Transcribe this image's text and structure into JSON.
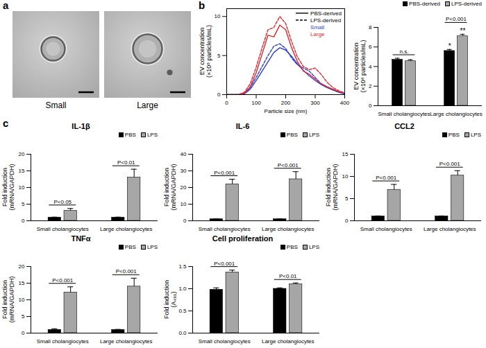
{
  "chart_data": [
    {
      "type": "image",
      "panel": "a",
      "labels": [
        "Small",
        "Large"
      ]
    },
    {
      "type": "line",
      "panel": "b",
      "x_label": "Particle size (nm)",
      "y_label": "EV concentration\n(×10⁸ particles/mL)",
      "x": [
        0,
        20,
        40,
        60,
        80,
        100,
        120,
        140,
        160,
        180,
        200,
        220,
        240,
        260,
        280,
        300,
        320,
        340,
        360,
        380,
        400
      ],
      "xlim": [
        0,
        400
      ],
      "xticks": [
        0,
        100,
        200,
        300,
        400
      ],
      "ylim": [
        0,
        11
      ],
      "yticks": [
        0,
        5,
        10
      ],
      "series": [
        {
          "name": "Small",
          "group": "PBS-derived",
          "color": "#2f3fd0",
          "line_style": "solid",
          "values": [
            0,
            0,
            0,
            0.1,
            0.7,
            1.8,
            3.0,
            4.2,
            5.4,
            6.0,
            5.7,
            4.9,
            3.9,
            3.1,
            2.4,
            1.8,
            1.3,
            0.9,
            0.6,
            0.3,
            0.1
          ]
        },
        {
          "name": "Small",
          "group": "LPS-derived",
          "color": "#2f3fd0",
          "line_style": "dashed",
          "values": [
            0,
            0,
            0,
            0.2,
            0.9,
            2.2,
            3.6,
            5.0,
            6.2,
            6.5,
            5.9,
            4.7,
            3.8,
            3.4,
            3.0,
            2.2,
            1.4,
            1.0,
            0.6,
            0.3,
            0.1
          ]
        },
        {
          "name": "Large",
          "group": "PBS-derived",
          "color": "#e3262b",
          "line_style": "solid",
          "values": [
            0,
            0,
            0,
            0.2,
            1.0,
            2.8,
            5.2,
            7.6,
            7.4,
            8.9,
            8.3,
            6.0,
            4.2,
            3.0,
            2.6,
            2.0,
            1.4,
            1.0,
            0.7,
            0.4,
            0.2
          ]
        },
        {
          "name": "Large",
          "group": "LPS-derived",
          "color": "#e3262b",
          "line_style": "dashed",
          "values": [
            0,
            0,
            0,
            0.3,
            1.4,
            3.5,
            6.0,
            8.3,
            8.6,
            10.0,
            9.1,
            6.8,
            4.8,
            3.6,
            3.2,
            3.4,
            2.6,
            1.6,
            0.9,
            0.5,
            0.2
          ]
        }
      ]
    },
    {
      "type": "bar",
      "y_label": "EV concentration\n(×10⁸ particles/mL)",
      "categories": [
        "Small cholangiocytes",
        "Large cholangiocytes"
      ],
      "ylim": [
        0,
        8
      ],
      "yticks": [
        0,
        2,
        4,
        6,
        8
      ],
      "series": [
        {
          "name": "PBS-derived",
          "color": "#000000",
          "values": [
            4.7,
            5.6
          ],
          "errors": [
            0.15,
            0.15
          ]
        },
        {
          "name": "LPS-derived",
          "color": "#a6a6a6",
          "values": [
            4.55,
            7.1
          ],
          "errors": [
            0.15,
            0.2
          ]
        }
      ],
      "annotations": [
        {
          "category": "Small cholangiocytes",
          "text": "n.s."
        },
        {
          "category": "Large cholangiocytes",
          "text": "P<0.001"
        },
        {
          "category": "Large cholangiocytes",
          "series": "PBS-derived",
          "text": "*"
        },
        {
          "category": "Large cholangiocytes",
          "series": "LPS-derived",
          "text": "**"
        }
      ]
    },
    {
      "type": "bar",
      "panel": "c",
      "title": "IL-1β",
      "y_label": "Fold induction\n(mRNA/GAPDH)",
      "categories": [
        "Small cholangiocytes",
        "Large cholangiocytes"
      ],
      "ylim": [
        0,
        20
      ],
      "yticks": [
        0,
        5,
        10,
        15,
        20
      ],
      "series": [
        {
          "name": "PBS",
          "color": "#000000",
          "values": [
            1.0,
            1.0
          ],
          "errors": [
            0.1,
            0.1
          ]
        },
        {
          "name": "LPS",
          "color": "#a6a6a6",
          "values": [
            3.0,
            13.0
          ],
          "errors": [
            0.7,
            2.5
          ]
        }
      ],
      "annotations": [
        {
          "category": "Small cholangiocytes",
          "text": "P<0.05"
        },
        {
          "category": "Large cholangiocytes",
          "text": "P<0.01"
        }
      ]
    },
    {
      "type": "bar",
      "title": "IL-6",
      "y_label": "Fold induction\n(mRNA/GAPDH)",
      "categories": [
        "Small cholangiocytes",
        "Large cholangiocytes"
      ],
      "ylim": [
        0,
        40
      ],
      "yticks": [
        0,
        10,
        20,
        30,
        40
      ],
      "series": [
        {
          "name": "PBS",
          "color": "#000000",
          "values": [
            1.0,
            1.0
          ],
          "errors": [
            0.2,
            0.2
          ]
        },
        {
          "name": "LPS",
          "color": "#a6a6a6",
          "values": [
            22.0,
            25.0
          ],
          "errors": [
            3.0,
            4.5
          ]
        }
      ],
      "annotations": [
        {
          "category": "Small cholangiocytes",
          "text": "P<0.001"
        },
        {
          "category": "Large cholangiocytes",
          "text": "P<0.001"
        }
      ]
    },
    {
      "type": "bar",
      "title": "CCL2",
      "y_label": "Fold induction\n(mRNA/GAPDH)",
      "categories": [
        "Small cholangiocytes",
        "Large cholangiocytes"
      ],
      "ylim": [
        0,
        15
      ],
      "yticks": [
        0,
        5,
        10,
        15
      ],
      "series": [
        {
          "name": "PBS",
          "color": "#000000",
          "values": [
            1.0,
            1.0
          ],
          "errors": [
            0.1,
            0.1
          ]
        },
        {
          "name": "LPS",
          "color": "#a6a6a6",
          "values": [
            7.0,
            10.2
          ],
          "errors": [
            1.2,
            1.1
          ]
        }
      ],
      "annotations": [
        {
          "category": "Small cholangiocytes",
          "text": "P<0.001"
        },
        {
          "category": "Large cholangiocytes",
          "text": "P<0.001"
        }
      ]
    },
    {
      "type": "bar",
      "title": "TNFα",
      "y_label": "Fold induction\n(mRNA/GAPDH)",
      "categories": [
        "Small cholangiocytes",
        "Large cholangiocytes"
      ],
      "ylim": [
        0,
        20
      ],
      "yticks": [
        0,
        5,
        10,
        15,
        20
      ],
      "series": [
        {
          "name": "PBS",
          "color": "#000000",
          "values": [
            1.0,
            1.0
          ],
          "errors": [
            0.3,
            0.1
          ]
        },
        {
          "name": "LPS",
          "color": "#a6a6a6",
          "values": [
            12.2,
            14.0
          ],
          "errors": [
            1.7,
            2.5
          ]
        }
      ],
      "annotations": [
        {
          "category": "Small cholangiocytes",
          "text": "P<0.001"
        },
        {
          "category": "Large cholangiocytes",
          "text": "P<0.001"
        }
      ]
    },
    {
      "type": "bar",
      "title": "Cell proliferation",
      "y_label": "Fold induction\n(A₄₉₀)",
      "categories": [
        "Small cholangiocytes",
        "Large cholangiocytes"
      ],
      "ylim": [
        0,
        1.5
      ],
      "yticks": [
        {
          "value": 0,
          "label": "0.0"
        },
        {
          "value": 0.5,
          "label": "0.5"
        },
        {
          "value": 1,
          "label": "1.0"
        },
        {
          "value": 1.5,
          "label": "1.5"
        }
      ],
      "series": [
        {
          "name": "PBS",
          "color": "#000000",
          "values": [
            0.98,
            1.0
          ],
          "errors": [
            0.04,
            0.02
          ]
        },
        {
          "name": "LPS",
          "color": "#a6a6a6",
          "values": [
            1.37,
            1.1
          ],
          "errors": [
            0.05,
            0.03
          ]
        }
      ],
      "annotations": [
        {
          "category": "Small cholangiocytes",
          "text": "P<0.001"
        },
        {
          "category": "Large cholangiocytes",
          "text": "P<0.01"
        }
      ]
    }
  ]
}
